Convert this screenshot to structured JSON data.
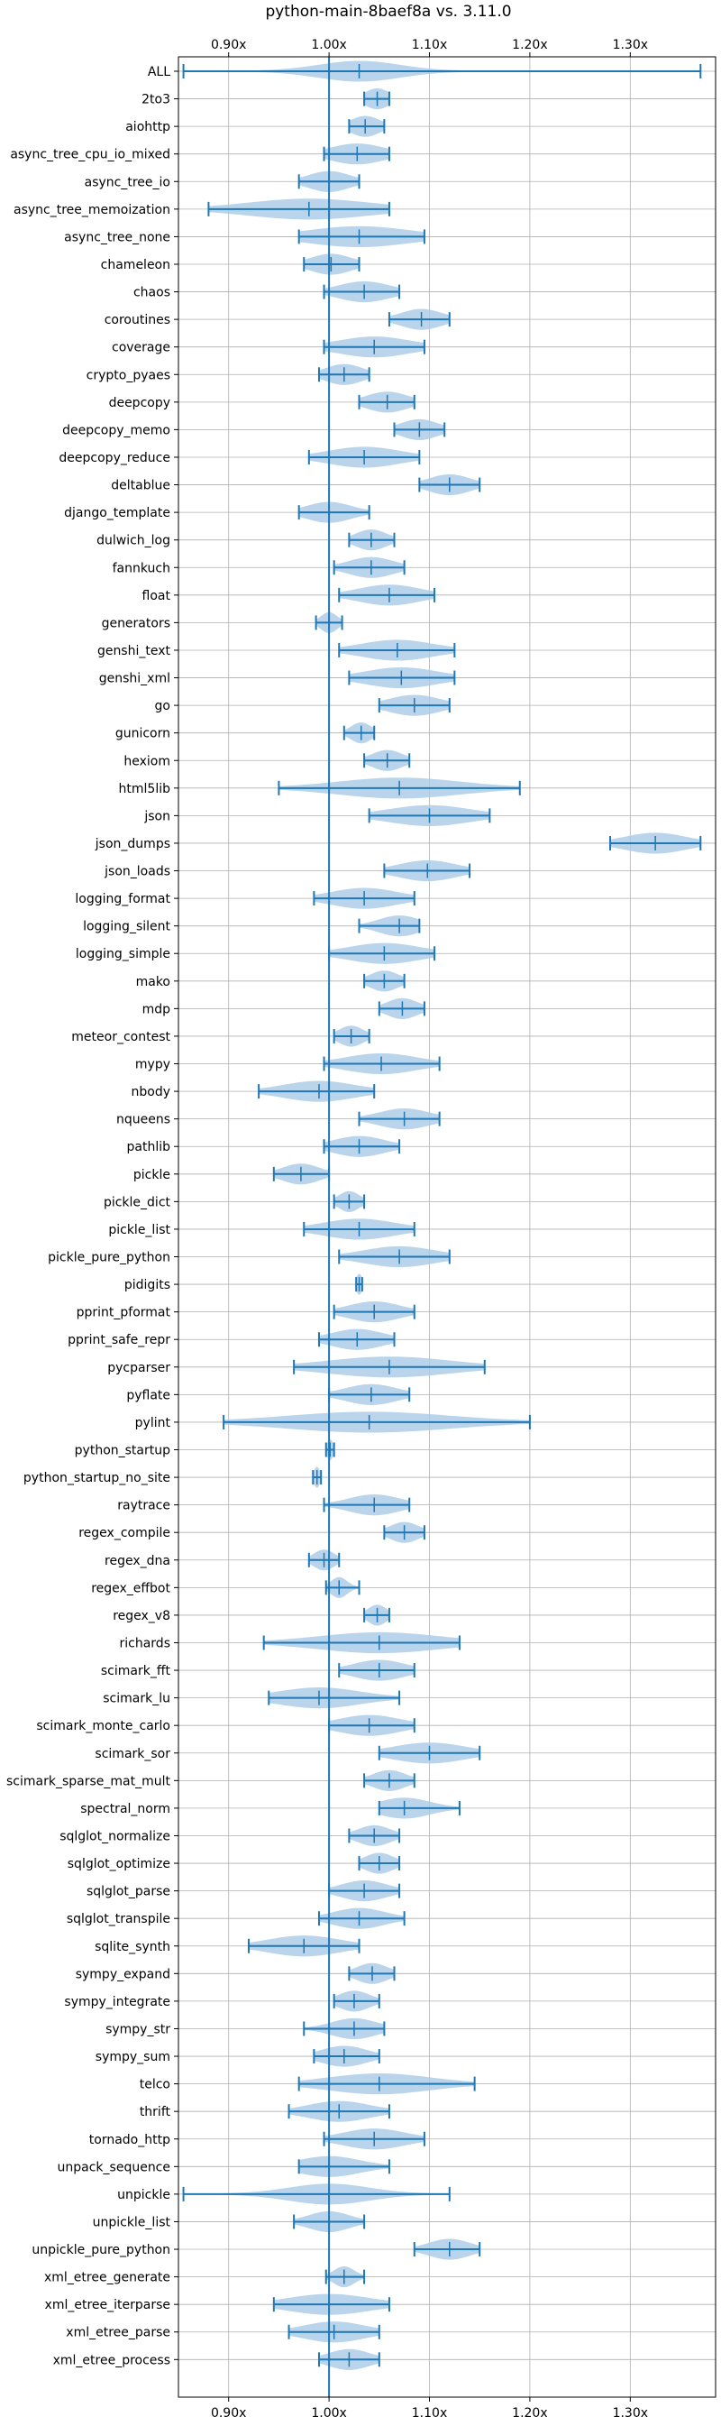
{
  "chart_data": {
    "type": "violin",
    "title": "python-main-8baef8a vs. 3.11.0",
    "xlabel": "",
    "ylabel": "",
    "xlim": [
      0.85,
      1.385
    ],
    "x_ticks": [
      0.9,
      1.0,
      1.1,
      1.2,
      1.3
    ],
    "x_tick_labels": [
      "0.90x",
      "1.00x",
      "1.10x",
      "1.20x",
      "1.30x"
    ],
    "reference_line": 1.0,
    "grid": true,
    "colors": {
      "violin": "#a9cbe6",
      "line": "#1f77b4"
    },
    "benchmarks": [
      {
        "name": "ALL",
        "min": 0.855,
        "max": 1.37,
        "median": 1.03,
        "spread": 0.04
      },
      {
        "name": "2to3",
        "min": 1.035,
        "max": 1.06,
        "median": 1.048,
        "spread": 0.012
      },
      {
        "name": "aiohttp",
        "min": 1.02,
        "max": 1.055,
        "median": 1.036,
        "spread": 0.014
      },
      {
        "name": "async_tree_cpu_io_mixed",
        "min": 0.995,
        "max": 1.06,
        "median": 1.028,
        "spread": 0.026
      },
      {
        "name": "async_tree_io",
        "min": 0.97,
        "max": 1.03,
        "median": 1.0,
        "spread": 0.02
      },
      {
        "name": "async_tree_memoization",
        "min": 0.88,
        "max": 1.06,
        "median": 0.98,
        "spread": 0.06
      },
      {
        "name": "async_tree_none",
        "min": 0.97,
        "max": 1.095,
        "median": 1.03,
        "spread": 0.05
      },
      {
        "name": "chameleon",
        "min": 0.975,
        "max": 1.03,
        "median": 1.002,
        "spread": 0.02
      },
      {
        "name": "chaos",
        "min": 0.995,
        "max": 1.07,
        "median": 1.035,
        "spread": 0.025
      },
      {
        "name": "coroutines",
        "min": 1.06,
        "max": 1.12,
        "median": 1.092,
        "spread": 0.02
      },
      {
        "name": "coverage",
        "min": 0.995,
        "max": 1.095,
        "median": 1.045,
        "spread": 0.035
      },
      {
        "name": "crypto_pyaes",
        "min": 0.99,
        "max": 1.04,
        "median": 1.015,
        "spread": 0.018
      },
      {
        "name": "deepcopy",
        "min": 1.03,
        "max": 1.085,
        "median": 1.058,
        "spread": 0.02
      },
      {
        "name": "deepcopy_memo",
        "min": 1.065,
        "max": 1.115,
        "median": 1.09,
        "spread": 0.018
      },
      {
        "name": "deepcopy_reduce",
        "min": 0.98,
        "max": 1.09,
        "median": 1.035,
        "spread": 0.035
      },
      {
        "name": "deltablue",
        "min": 1.09,
        "max": 1.15,
        "median": 1.12,
        "spread": 0.02
      },
      {
        "name": "django_template",
        "min": 0.97,
        "max": 1.04,
        "median": 1.0,
        "spread": 0.022
      },
      {
        "name": "dulwich_log",
        "min": 1.02,
        "max": 1.065,
        "median": 1.042,
        "spread": 0.015
      },
      {
        "name": "fannkuch",
        "min": 1.005,
        "max": 1.075,
        "median": 1.042,
        "spread": 0.022
      },
      {
        "name": "float",
        "min": 1.01,
        "max": 1.105,
        "median": 1.06,
        "spread": 0.03
      },
      {
        "name": "generators",
        "min": 0.987,
        "max": 1.013,
        "median": 1.0,
        "spread": 0.008
      },
      {
        "name": "genshi_text",
        "min": 1.01,
        "max": 1.125,
        "median": 1.068,
        "spread": 0.035
      },
      {
        "name": "genshi_xml",
        "min": 1.02,
        "max": 1.125,
        "median": 1.072,
        "spread": 0.035
      },
      {
        "name": "go",
        "min": 1.05,
        "max": 1.12,
        "median": 1.085,
        "spread": 0.025
      },
      {
        "name": "gunicorn",
        "min": 1.015,
        "max": 1.045,
        "median": 1.032,
        "spread": 0.01
      },
      {
        "name": "hexiom",
        "min": 1.035,
        "max": 1.08,
        "median": 1.058,
        "spread": 0.015
      },
      {
        "name": "html5lib",
        "min": 0.95,
        "max": 1.19,
        "median": 1.07,
        "spread": 0.06
      },
      {
        "name": "json",
        "min": 1.04,
        "max": 1.16,
        "median": 1.1,
        "spread": 0.04
      },
      {
        "name": "json_dumps",
        "min": 1.28,
        "max": 1.37,
        "median": 1.325,
        "spread": 0.03
      },
      {
        "name": "json_loads",
        "min": 1.055,
        "max": 1.14,
        "median": 1.098,
        "spread": 0.028
      },
      {
        "name": "logging_format",
        "min": 0.985,
        "max": 1.085,
        "median": 1.035,
        "spread": 0.032
      },
      {
        "name": "logging_silent",
        "min": 1.03,
        "max": 1.09,
        "median": 1.07,
        "spread": 0.02
      },
      {
        "name": "logging_simple",
        "min": 1.0,
        "max": 1.105,
        "median": 1.055,
        "spread": 0.035
      },
      {
        "name": "mako",
        "min": 1.035,
        "max": 1.075,
        "median": 1.055,
        "spread": 0.014
      },
      {
        "name": "mdp",
        "min": 1.05,
        "max": 1.095,
        "median": 1.073,
        "spread": 0.015
      },
      {
        "name": "meteor_contest",
        "min": 1.005,
        "max": 1.04,
        "median": 1.022,
        "spread": 0.012
      },
      {
        "name": "mypy",
        "min": 0.995,
        "max": 1.11,
        "median": 1.052,
        "spread": 0.035
      },
      {
        "name": "nbody",
        "min": 0.93,
        "max": 1.045,
        "median": 0.99,
        "spread": 0.035
      },
      {
        "name": "nqueens",
        "min": 1.03,
        "max": 1.11,
        "median": 1.075,
        "spread": 0.025
      },
      {
        "name": "pathlib",
        "min": 0.995,
        "max": 1.07,
        "median": 1.03,
        "spread": 0.025
      },
      {
        "name": "pickle",
        "min": 0.945,
        "max": 1.0,
        "median": 0.972,
        "spread": 0.018
      },
      {
        "name": "pickle_dict",
        "min": 1.005,
        "max": 1.035,
        "median": 1.02,
        "spread": 0.01
      },
      {
        "name": "pickle_list",
        "min": 0.975,
        "max": 1.085,
        "median": 1.03,
        "spread": 0.035
      },
      {
        "name": "pickle_pure_python",
        "min": 1.01,
        "max": 1.12,
        "median": 1.07,
        "spread": 0.035
      },
      {
        "name": "pidigits",
        "min": 1.027,
        "max": 1.033,
        "median": 1.03,
        "spread": 0.003
      },
      {
        "name": "pprint_pformat",
        "min": 1.005,
        "max": 1.085,
        "median": 1.045,
        "spread": 0.025
      },
      {
        "name": "pprint_safe_repr",
        "min": 0.99,
        "max": 1.065,
        "median": 1.028,
        "spread": 0.025
      },
      {
        "name": "pycparser",
        "min": 0.965,
        "max": 1.155,
        "median": 1.06,
        "spread": 0.06
      },
      {
        "name": "pyflate",
        "min": 1.0,
        "max": 1.08,
        "median": 1.042,
        "spread": 0.025
      },
      {
        "name": "pylint",
        "min": 0.895,
        "max": 1.2,
        "median": 1.04,
        "spread": 0.08
      },
      {
        "name": "python_startup",
        "min": 0.997,
        "max": 1.005,
        "median": 1.001,
        "spread": 0.003
      },
      {
        "name": "python_startup_no_site",
        "min": 0.984,
        "max": 0.992,
        "median": 0.988,
        "spread": 0.003
      },
      {
        "name": "raytrace",
        "min": 0.995,
        "max": 1.08,
        "median": 1.045,
        "spread": 0.025
      },
      {
        "name": "regex_compile",
        "min": 1.055,
        "max": 1.095,
        "median": 1.075,
        "spread": 0.014
      },
      {
        "name": "regex_dna",
        "min": 0.98,
        "max": 1.01,
        "median": 0.995,
        "spread": 0.01
      },
      {
        "name": "regex_effbot",
        "min": 0.997,
        "max": 1.03,
        "median": 1.01,
        "spread": 0.008
      },
      {
        "name": "regex_v8",
        "min": 1.035,
        "max": 1.06,
        "median": 1.048,
        "spread": 0.009
      },
      {
        "name": "richards",
        "min": 0.935,
        "max": 1.13,
        "median": 1.05,
        "spread": 0.06
      },
      {
        "name": "scimark_fft",
        "min": 1.01,
        "max": 1.085,
        "median": 1.05,
        "spread": 0.025
      },
      {
        "name": "scimark_lu",
        "min": 0.94,
        "max": 1.07,
        "median": 0.99,
        "spread": 0.04
      },
      {
        "name": "scimark_monte_carlo",
        "min": 1.0,
        "max": 1.085,
        "median": 1.04,
        "spread": 0.03
      },
      {
        "name": "scimark_sor",
        "min": 1.05,
        "max": 1.15,
        "median": 1.1,
        "spread": 0.035
      },
      {
        "name": "scimark_sparse_mat_mult",
        "min": 1.035,
        "max": 1.085,
        "median": 1.06,
        "spread": 0.016
      },
      {
        "name": "spectral_norm",
        "min": 1.05,
        "max": 1.13,
        "median": 1.075,
        "spread": 0.025
      },
      {
        "name": "sqlglot_normalize",
        "min": 1.02,
        "max": 1.07,
        "median": 1.045,
        "spread": 0.016
      },
      {
        "name": "sqlglot_optimize",
        "min": 1.03,
        "max": 1.07,
        "median": 1.05,
        "spread": 0.014
      },
      {
        "name": "sqlglot_parse",
        "min": 1.0,
        "max": 1.07,
        "median": 1.035,
        "spread": 0.022
      },
      {
        "name": "sqlglot_transpile",
        "min": 0.99,
        "max": 1.075,
        "median": 1.03,
        "spread": 0.025
      },
      {
        "name": "sqlite_synth",
        "min": 0.92,
        "max": 1.03,
        "median": 0.975,
        "spread": 0.035
      },
      {
        "name": "sympy_expand",
        "min": 1.02,
        "max": 1.065,
        "median": 1.043,
        "spread": 0.015
      },
      {
        "name": "sympy_integrate",
        "min": 1.005,
        "max": 1.05,
        "median": 1.025,
        "spread": 0.015
      },
      {
        "name": "sympy_str",
        "min": 0.975,
        "max": 1.055,
        "median": 1.025,
        "spread": 0.022
      },
      {
        "name": "sympy_sum",
        "min": 0.985,
        "max": 1.05,
        "median": 1.015,
        "spread": 0.022
      },
      {
        "name": "telco",
        "min": 0.97,
        "max": 1.145,
        "median": 1.05,
        "spread": 0.05
      },
      {
        "name": "thrift",
        "min": 0.96,
        "max": 1.06,
        "median": 1.01,
        "spread": 0.03
      },
      {
        "name": "tornado_http",
        "min": 0.995,
        "max": 1.095,
        "median": 1.045,
        "spread": 0.03
      },
      {
        "name": "unpack_sequence",
        "min": 0.97,
        "max": 1.06,
        "median": 1.0,
        "spread": 0.03
      },
      {
        "name": "unpickle",
        "min": 0.855,
        "max": 1.12,
        "median": 1.0,
        "spread": 0.04
      },
      {
        "name": "unpickle_list",
        "min": 0.965,
        "max": 1.035,
        "median": 1.0,
        "spread": 0.02
      },
      {
        "name": "unpickle_pure_python",
        "min": 1.085,
        "max": 1.15,
        "median": 1.12,
        "spread": 0.02
      },
      {
        "name": "xml_etree_generate",
        "min": 0.997,
        "max": 1.035,
        "median": 1.015,
        "spread": 0.01
      },
      {
        "name": "xml_etree_iterparse",
        "min": 0.945,
        "max": 1.06,
        "median": 1.0,
        "spread": 0.04
      },
      {
        "name": "xml_etree_parse",
        "min": 0.96,
        "max": 1.05,
        "median": 1.005,
        "spread": 0.03
      },
      {
        "name": "xml_etree_process",
        "min": 0.99,
        "max": 1.05,
        "median": 1.02,
        "spread": 0.02
      }
    ]
  }
}
